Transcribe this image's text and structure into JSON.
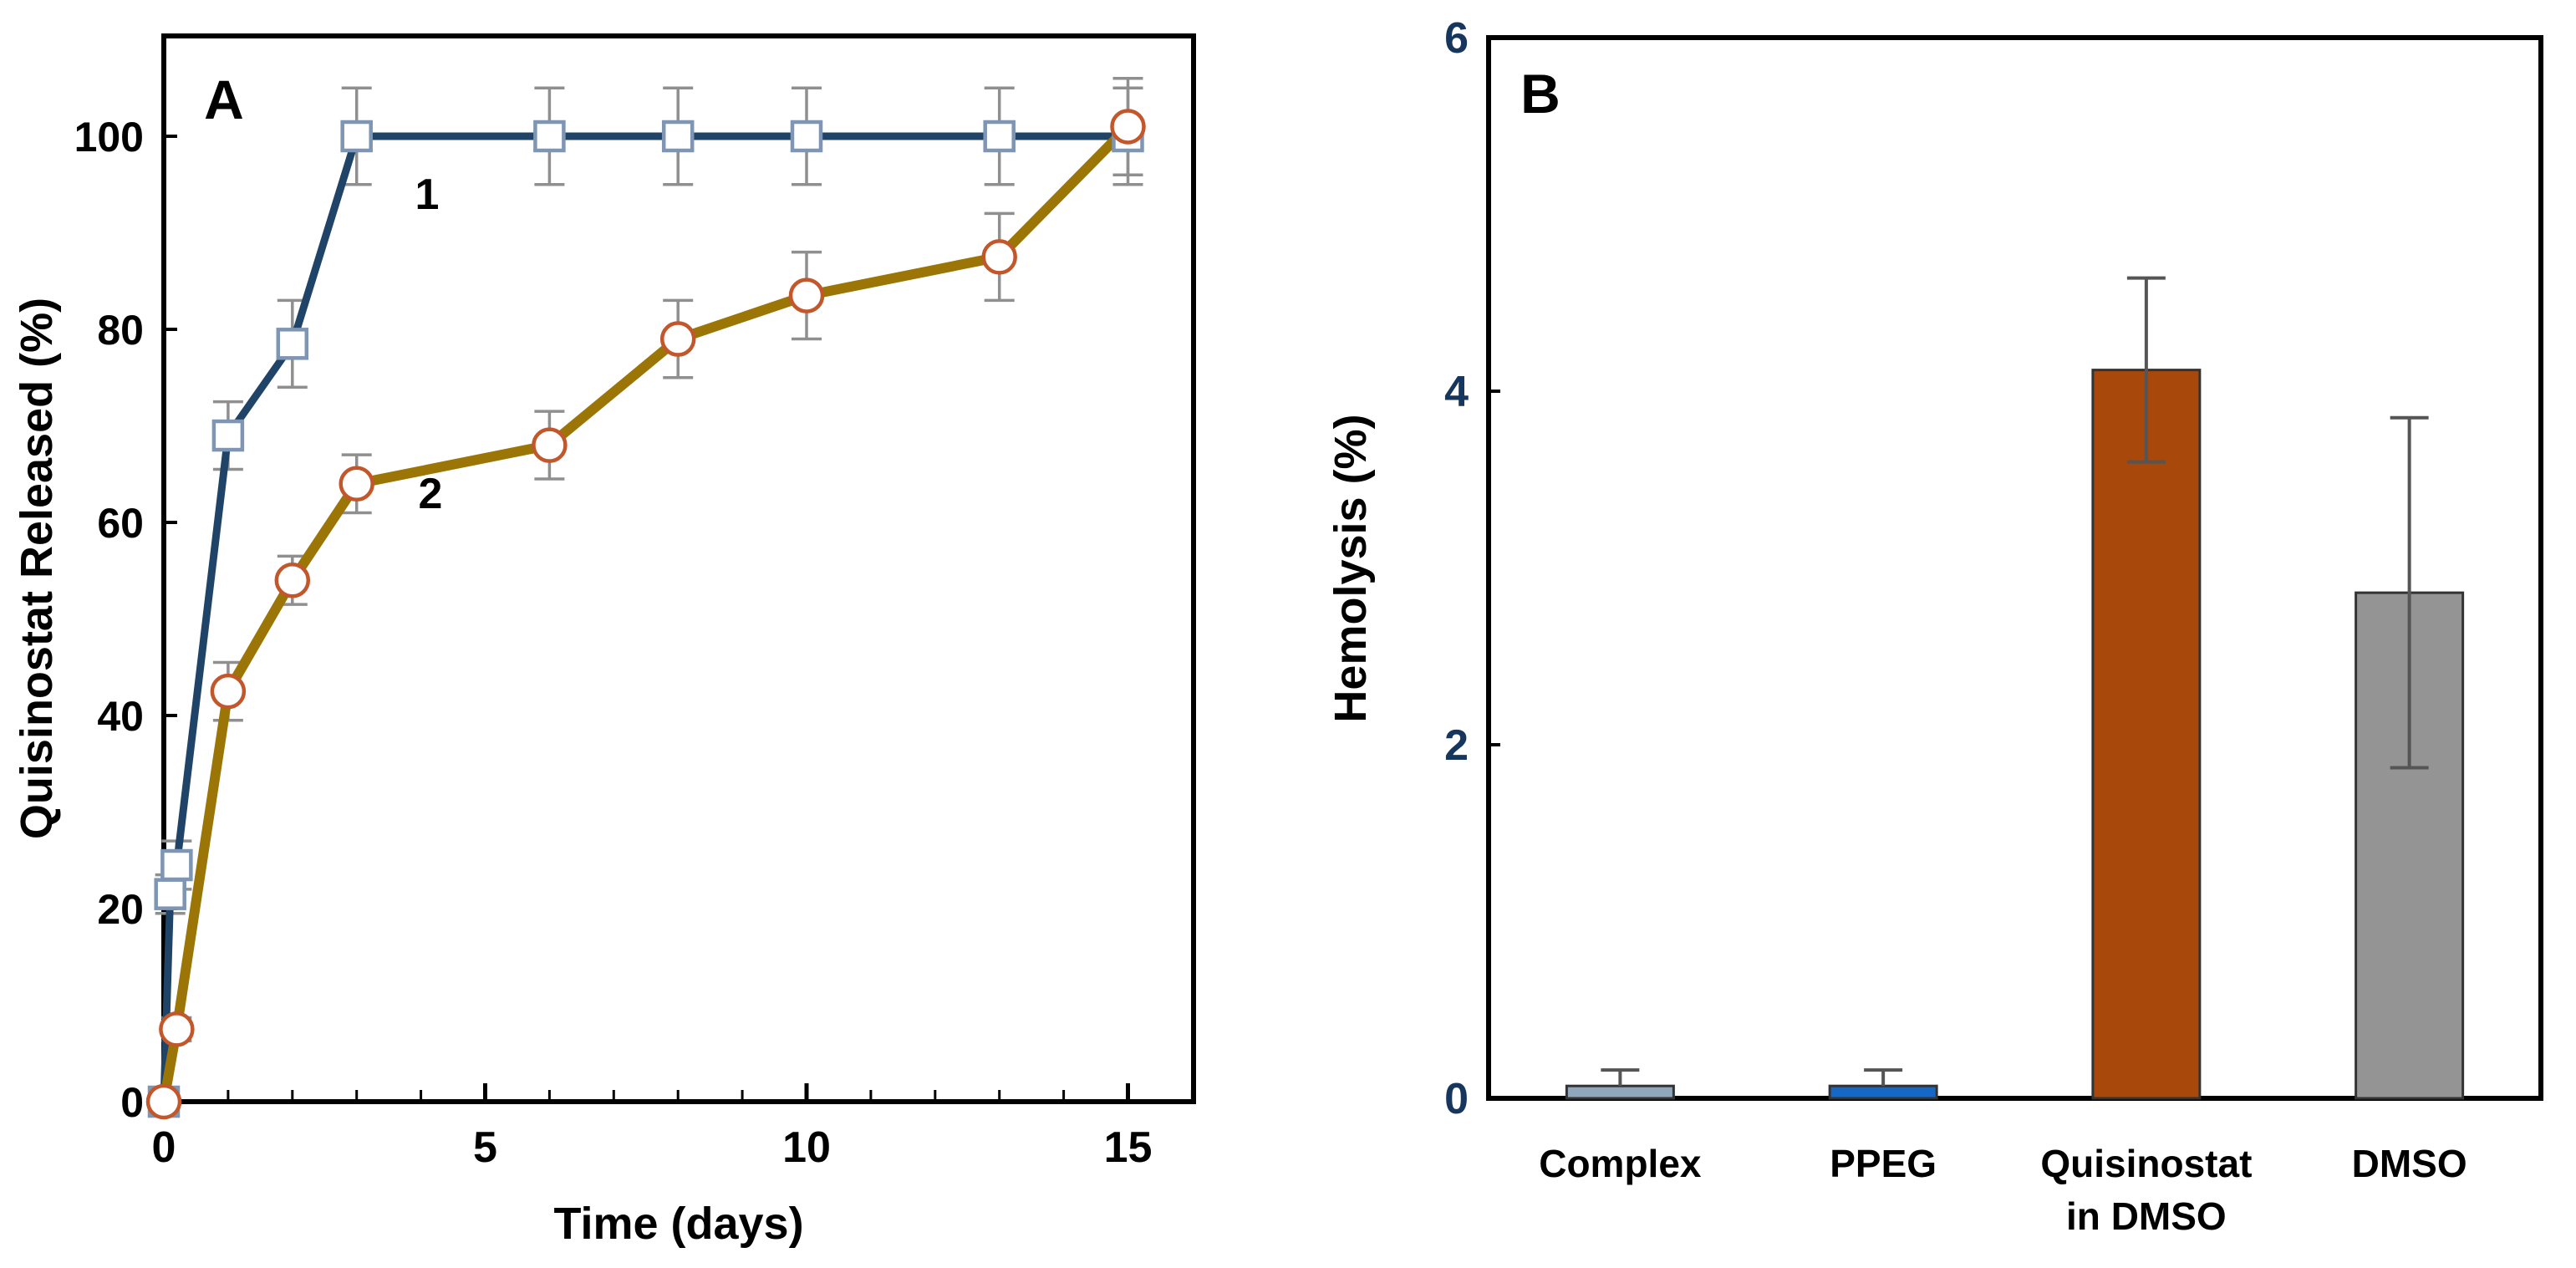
{
  "figure": {
    "background": "#FFFFFF",
    "panel_a_letter": "A",
    "panel_b_letter": "B"
  },
  "chart_data": [
    {
      "id": "A",
      "type": "line",
      "panel_label": "A",
      "xlabel": "Time (days)",
      "ylabel": "Quisinostat Released (%)",
      "xlim": [
        0,
        16
      ],
      "ylim": [
        0,
        110
      ],
      "x_major_ticks": [
        0,
        5,
        10,
        15
      ],
      "x_minor_tick_step": 1,
      "y_ticks": [
        0,
        20,
        40,
        60,
        80,
        100
      ],
      "grid": false,
      "axis_color": "#000000",
      "tick_label_color": "#000000",
      "error_bar_color": "#8F8F8F",
      "series": [
        {
          "name": "1",
          "marker": "square",
          "line_color": "#1F4468",
          "marker_stroke": "#7E95B3",
          "marker_fill": "#FFFFFF",
          "x": [
            0,
            0.1,
            0.2,
            1,
            2,
            3,
            6,
            8,
            10,
            13,
            15
          ],
          "y": [
            0,
            21.5,
            24.5,
            69,
            78.5,
            100,
            100,
            100,
            100,
            100,
            100
          ],
          "err": [
            0,
            2,
            2.5,
            3.5,
            4.5,
            5,
            5,
            5,
            5,
            5,
            5
          ],
          "label": {
            "text": "1",
            "x": 4.1,
            "y": 94
          }
        },
        {
          "name": "2",
          "marker": "circle",
          "line_color": "#9B7505",
          "marker_stroke": "#C2572B",
          "marker_fill": "#FFFFFF",
          "x": [
            0,
            0.2,
            1,
            2,
            3,
            6,
            8,
            10,
            13,
            15
          ],
          "y": [
            0,
            7.5,
            42.5,
            54,
            64,
            68,
            79,
            83.5,
            87.5,
            101
          ],
          "err": [
            0,
            1.2,
            3,
            2.5,
            3,
            3.5,
            4,
            4.5,
            4.5,
            5
          ],
          "label": {
            "text": "2",
            "x": 4.15,
            "y": 63
          }
        }
      ]
    },
    {
      "id": "B",
      "type": "bar",
      "panel_label": "B",
      "ylabel": "Hemolysis (%)",
      "ylim": [
        0,
        6
      ],
      "y_ticks": [
        0,
        2,
        4,
        6
      ],
      "grid": false,
      "axis_color": "#000000",
      "tick_label_color": "#17365D",
      "error_bar_color": "#555555",
      "categories": [
        "Complex",
        "PPEG",
        "Quisinostat in DMSO",
        "DMSO"
      ],
      "category_label_lines": [
        [
          "Complex"
        ],
        [
          "PPEG"
        ],
        [
          "Quisinostat",
          "in DMSO"
        ],
        [
          "DMSO"
        ]
      ],
      "values": [
        0.07,
        0.07,
        4.12,
        2.86
      ],
      "errors_plus": [
        0.09,
        0.09,
        0.52,
        0.99
      ],
      "errors_minus": [
        0,
        0,
        0.52,
        0.99
      ],
      "bar_colors": [
        "#8FA6BC",
        "#1668C6",
        "#A8490B",
        "#949494"
      ],
      "bar_border_color": "#333333",
      "category_label_color": "#000000"
    }
  ]
}
